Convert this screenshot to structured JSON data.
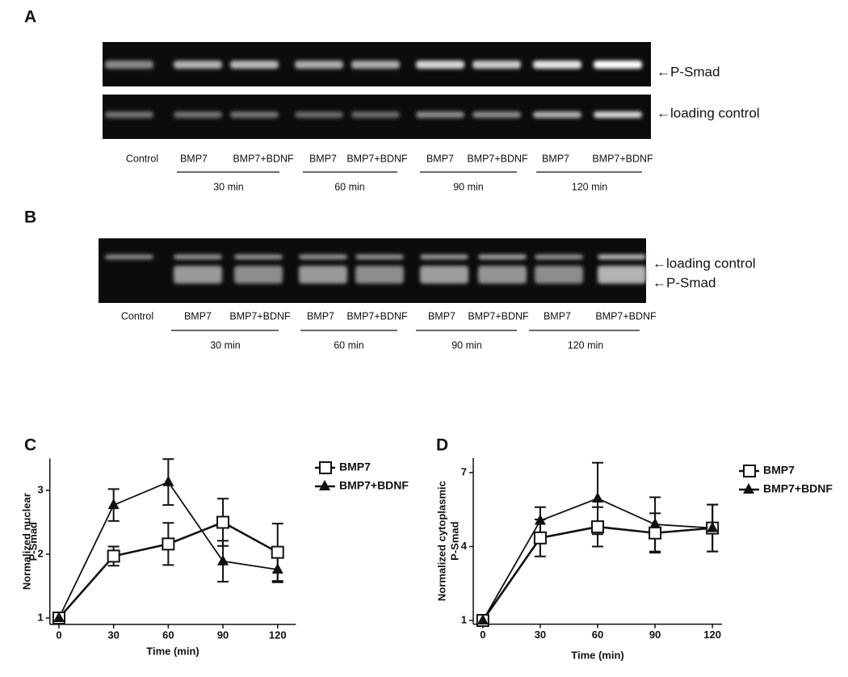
{
  "blots": [
    {
      "panel": "A",
      "markers": [
        "←P-Smad",
        "←loading control"
      ],
      "lanes": [
        "Control",
        "BMP7",
        "BMP7+BDNF",
        "BMP7",
        "BMP7+BDNF",
        "BMP7",
        "BMP7+BDNF",
        "BMP7",
        "BMP7+BDNF"
      ],
      "times": [
        "30 min",
        "60 min",
        "90 min",
        "120 min"
      ]
    },
    {
      "panel": "B",
      "markers": [
        "←loading control",
        "←P-Smad"
      ],
      "lanes": [
        "Control",
        "BMP7",
        "BMP7+BDNF",
        "BMP7",
        "BMP7+BDNF",
        "BMP7",
        "BMP7+BDNF",
        "BMP7",
        "BMP7+BDNF"
      ],
      "times": [
        "30 min",
        "60 min",
        "90 min",
        "120 min"
      ]
    }
  ],
  "chart_data": [
    {
      "type": "line",
      "panel": "C",
      "xlabel": "Time (min)",
      "ylabel": [
        "Normalized nuclear",
        "P-Smad"
      ],
      "x": [
        0,
        30,
        60,
        90,
        120
      ],
      "xlim": [
        -5,
        130
      ],
      "xticks": [
        0,
        30,
        60,
        90,
        120
      ],
      "ylim": [
        0.9,
        3.5
      ],
      "yticks": [
        1,
        2,
        3
      ],
      "series": [
        {
          "name": "BMP7",
          "color": "#111111",
          "marker": "square",
          "values": [
            1,
            1.97,
            2.16,
            2.5,
            2.03
          ],
          "errors": [
            0,
            0.15,
            0.33,
            0.37,
            0.45
          ]
        },
        {
          "name": "BMP7+BDNF",
          "color": "#111111",
          "marker": "triangle",
          "values": [
            1,
            2.77,
            3.13,
            1.89,
            1.76
          ],
          "errors": [
            0,
            0.25,
            0.36,
            0.32,
            0.2
          ]
        }
      ]
    },
    {
      "type": "line",
      "panel": "D",
      "xlabel": "Time (min)",
      "ylabel": [
        "Normalized cytoplasmic",
        "P-Smad"
      ],
      "x": [
        0,
        30,
        60,
        90,
        120
      ],
      "xlim": [
        -5,
        125
      ],
      "xticks": [
        0,
        30,
        60,
        90,
        120
      ],
      "ylim": [
        0.85,
        7.6
      ],
      "yticks": [
        1,
        4,
        7
      ],
      "series": [
        {
          "name": "BMP7",
          "color": "#111111",
          "marker": "square",
          "values": [
            1,
            4.35,
            4.8,
            4.55,
            4.75
          ],
          "errors": [
            0,
            0.75,
            0.8,
            0.8,
            0.95
          ]
        },
        {
          "name": "BMP7+BDNF",
          "color": "#111111",
          "marker": "triangle",
          "values": [
            1,
            5.05,
            5.95,
            4.9,
            4.75
          ],
          "errors": [
            0,
            0.55,
            1.45,
            1.1,
            0.95
          ]
        }
      ]
    }
  ]
}
